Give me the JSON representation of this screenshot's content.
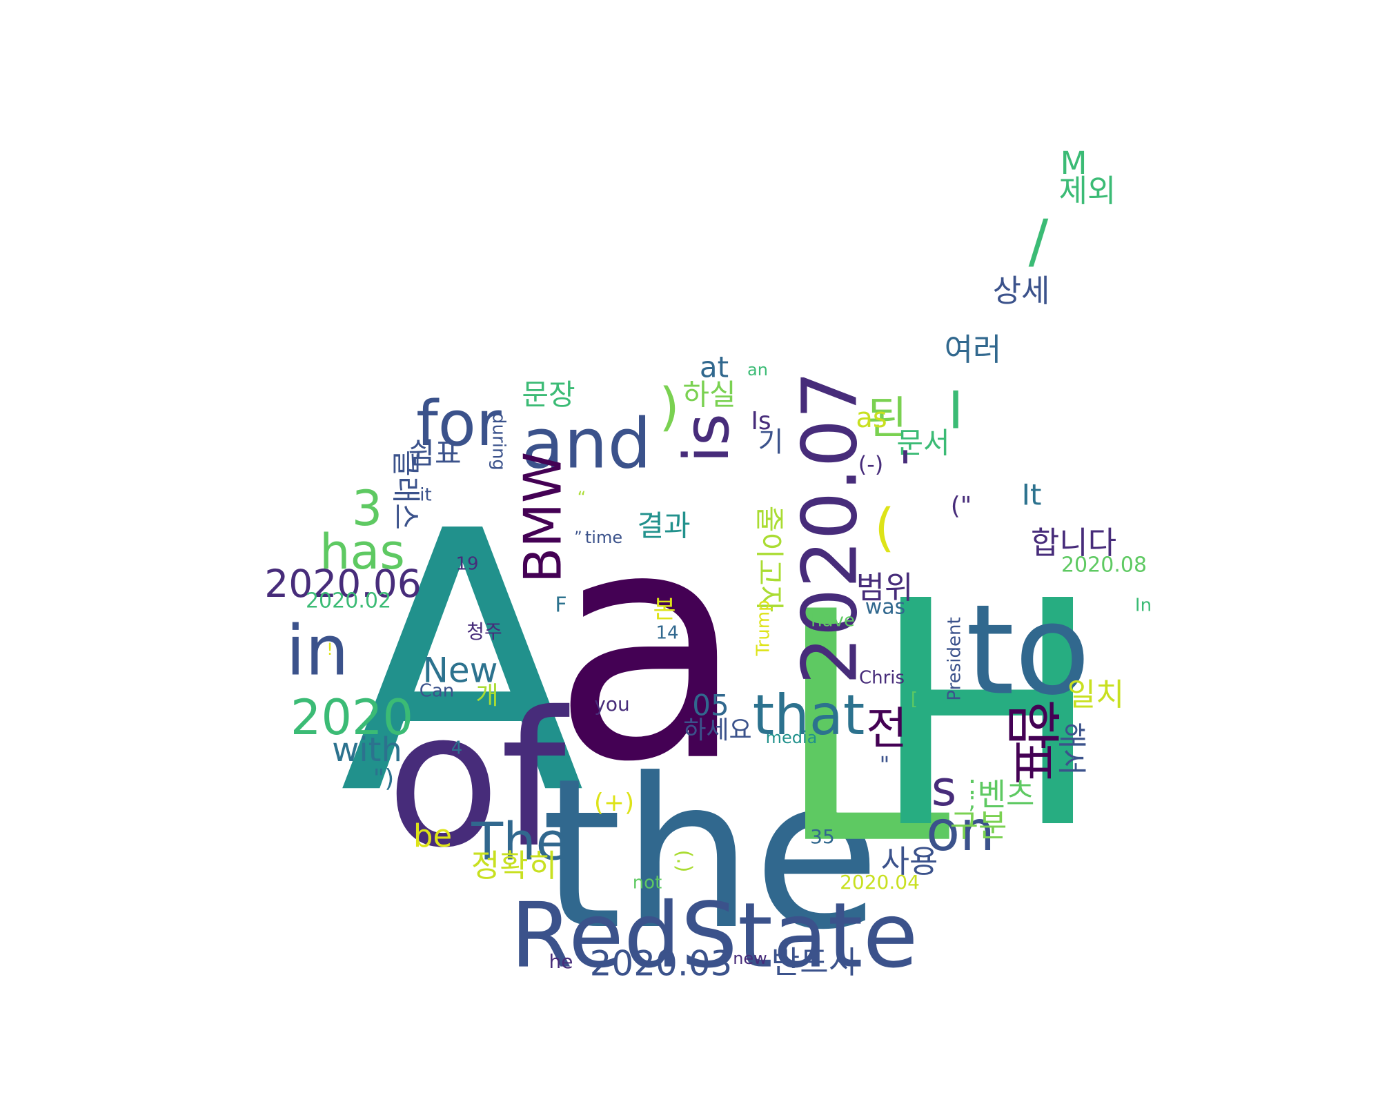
{
  "words": [
    {
      "text": "A",
      "color": "#21918c"
    },
    {
      "text": "a",
      "color": "#440154"
    },
    {
      "text": "the",
      "color": "#31688e"
    },
    {
      "text": "of",
      "color": "#472c7a"
    },
    {
      "text": "L",
      "color": "#5ec962"
    },
    {
      "text": "H",
      "color": "#27ad81"
    },
    {
      "text": "to",
      "color": "#31688e"
    },
    {
      "text": "RedState",
      "color": "#3b528b"
    },
    {
      "text": "2020.07",
      "color": "#472c7a"
    },
    {
      "text": "in",
      "color": "#3b528b"
    },
    {
      "text": "and",
      "color": "#3b528b"
    },
    {
      "text": "for",
      "color": "#3b528b"
    },
    {
      "text": "is",
      "color": "#472c7a"
    },
    {
      "text": "함",
      "color": "#440154"
    },
    {
      "text": "that",
      "color": "#2c728e"
    },
    {
      "text": "on",
      "color": "#3b528b"
    },
    {
      "text": "BMW",
      "color": "#440154"
    },
    {
      "text": "The",
      "color": "#31688e"
    },
    {
      "text": "2020",
      "color": "#3bbb75"
    },
    {
      "text": "표",
      "color": "#440154"
    },
    {
      "text": "s",
      "color": "#472c7a"
    },
    {
      "text": "has",
      "color": "#5ec962"
    },
    {
      "text": "2020.06",
      "color": "#472c7a"
    },
    {
      "text": "전",
      "color": "#440154"
    },
    {
      "text": "된",
      "color": "#7ad151"
    },
    {
      "text": "3",
      "color": "#5ec962"
    },
    {
      "text": "(",
      "color": "#dde318"
    },
    {
      "text": ")",
      "color": "#7ad151"
    },
    {
      "text": "/",
      "color": "#3bbb75"
    },
    {
      "text": "New",
      "color": "#2c728e"
    },
    {
      "text": "2020.03",
      "color": "#3b528b"
    },
    {
      "text": "I",
      "color": "#3bbb75"
    },
    {
      "text": "반드시",
      "color": "#3b528b"
    },
    {
      "text": "사용",
      "color": "#3b528b"
    },
    {
      "text": "벤츠",
      "color": "#5ec962"
    },
    {
      "text": "합니다",
      "color": "#472c7a"
    },
    {
      "text": "with",
      "color": "#2c728e"
    },
    {
      "text": "정확히",
      "color": "#c8e020"
    },
    {
      "text": "구분",
      "color": "#7ad151"
    },
    {
      "text": "해서",
      "color": "#3b528b"
    },
    {
      "text": "결과",
      "color": "#21918c"
    },
    {
      "text": "범위",
      "color": "#472c7a"
    },
    {
      "text": "일치",
      "color": "#c8e020"
    },
    {
      "text": "문서",
      "color": "#3bbb75"
    },
    {
      "text": "문장",
      "color": "#3bbb75"
    },
    {
      "text": "하실",
      "color": "#7ad151"
    },
    {
      "text": "여러",
      "color": "#31688e"
    },
    {
      "text": "상세",
      "color": "#3b528b"
    },
    {
      "text": "제외",
      "color": "#3bbb75"
    },
    {
      "text": "M",
      "color": "#3bbb75"
    },
    {
      "text": "쉼표",
      "color": "#3b528b"
    },
    {
      "text": "클래스",
      "color": "#3b528b"
    },
    {
      "text": "줄이고자",
      "color": "#aadc32"
    },
    {
      "text": "at",
      "color": "#31688e"
    },
    {
      "text": "be",
      "color": "#dde318"
    },
    {
      "text": "as",
      "color": "#c8e020"
    },
    {
      "text": "Is",
      "color": "#472c7a"
    },
    {
      "text": "It",
      "color": "#2c728e"
    },
    {
      "text": "기",
      "color": "#3b528b"
    },
    {
      "text": "05",
      "color": "#31688e"
    },
    {
      "text": "개",
      "color": "#aadc32"
    },
    {
      "text": "본",
      "color": "#dde318"
    },
    {
      "text": "하세요",
      "color": "#3b528b"
    },
    {
      "text": "(-)",
      "color": "#472c7a"
    },
    {
      "text": "(+)",
      "color": "#dde318"
    },
    {
      "text": "(\"",
      "color": "#472c7a"
    },
    {
      "text": "\")",
      "color": "#2c728e"
    },
    {
      "text": "\"",
      "color": "#3b528b"
    },
    {
      "text": "2020.02",
      "color": "#3bbb75"
    },
    {
      "text": "2020.08",
      "color": "#5ec962"
    },
    {
      "text": "2020.04",
      "color": "#c8e020"
    },
    {
      "text": "during",
      "color": "#3b528b"
    },
    {
      "text": "it",
      "color": "#3b528b"
    },
    {
      "text": "time",
      "color": "#3b528b"
    },
    {
      "text": "19",
      "color": "#472c7a"
    },
    {
      "text": "F",
      "color": "#2c728e"
    },
    {
      "text": "청주",
      "color": "#472c7a"
    },
    {
      "text": "14",
      "color": "#31688e"
    },
    {
      "text": "Trump",
      "color": "#dde318"
    },
    {
      "text": "was",
      "color": "#31688e"
    },
    {
      "text": "have",
      "color": "#5ec962"
    },
    {
      "text": "Chris",
      "color": "#472c7a"
    },
    {
      "text": "President",
      "color": "#3b528b"
    },
    {
      "text": "Can",
      "color": "#3b528b"
    },
    {
      "text": "you",
      "color": "#472c7a"
    },
    {
      "text": "media",
      "color": "#21918c"
    },
    {
      "text": "4",
      "color": "#2c728e"
    },
    {
      "text": "35",
      "color": "#31688e"
    },
    {
      "text": "not",
      "color": "#5ec962"
    },
    {
      "text": "he",
      "color": "#472c7a"
    },
    {
      "text": "new",
      "color": "#472c7a"
    },
    {
      "text": "an",
      "color": "#3bbb75"
    },
    {
      "text": "In",
      "color": "#3bbb75"
    },
    {
      "text": ":",
      "color": "#5ec962"
    },
    {
      "text": ";",
      "color": "#5ec962"
    },
    {
      "text": "'",
      "color": "#472c7a"
    },
    {
      "text": "“",
      "color": "#aadc32"
    },
    {
      "text": "”",
      "color": "#3b528b"
    },
    {
      "text": "!",
      "color": "#dde318"
    },
    {
      "text": "[",
      "color": "#5ec962"
    },
    {
      "text": "(.)",
      "color": "#aadc32"
    }
  ]
}
